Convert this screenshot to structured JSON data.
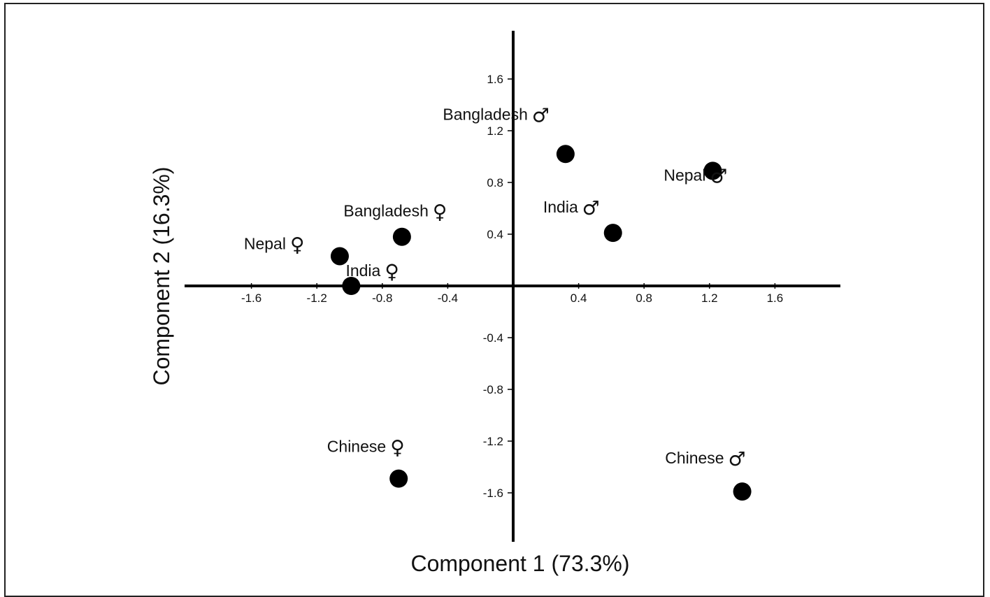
{
  "chart_data": {
    "type": "scatter",
    "xlabel": "Component 1 (73.3%)",
    "ylabel": "Component 2 (16.3%)",
    "xlim": [
      -2.0,
      2.0
    ],
    "ylim": [
      -1.98,
      1.98
    ],
    "x_ticks": [
      -1.6,
      -1.2,
      -0.8,
      -0.4,
      0.4,
      0.8,
      1.2,
      1.6
    ],
    "y_ticks": [
      1.6,
      1.2,
      0.8,
      0.4,
      -0.4,
      -0.8,
      -1.2,
      -1.6
    ],
    "x_tick_labels": [
      "-1.6",
      "-1.2",
      "-0.8",
      "-0.4",
      "0.4",
      "0.8",
      "1.2",
      "1.6"
    ],
    "y_tick_labels": [
      "1.6",
      "1.2",
      "0.8",
      "0.4",
      "-0.4",
      "-0.8",
      "-1.2",
      "-1.6"
    ],
    "grid": false,
    "marker_color": "#000000",
    "points": [
      {
        "label": "Bangladesh",
        "symbol": "♂",
        "x": 0.32,
        "y": 1.02
      },
      {
        "label": "Nepal",
        "symbol": "♂",
        "x": 1.22,
        "y": 0.89
      },
      {
        "label": "India",
        "symbol": "♂",
        "x": 0.61,
        "y": 0.41
      },
      {
        "label": "Bangladesh",
        "symbol": "♀",
        "x": -0.68,
        "y": 0.38
      },
      {
        "label": "Nepal",
        "symbol": "♀",
        "x": -1.06,
        "y": 0.23
      },
      {
        "label": "India",
        "symbol": "♀",
        "x": -0.99,
        "y": 0.0
      },
      {
        "label": "Chinese",
        "symbol": "♀",
        "x": -0.7,
        "y": -1.49
      },
      {
        "label": "Chinese",
        "symbol": "♂",
        "x": 1.4,
        "y": -1.59
      }
    ]
  }
}
